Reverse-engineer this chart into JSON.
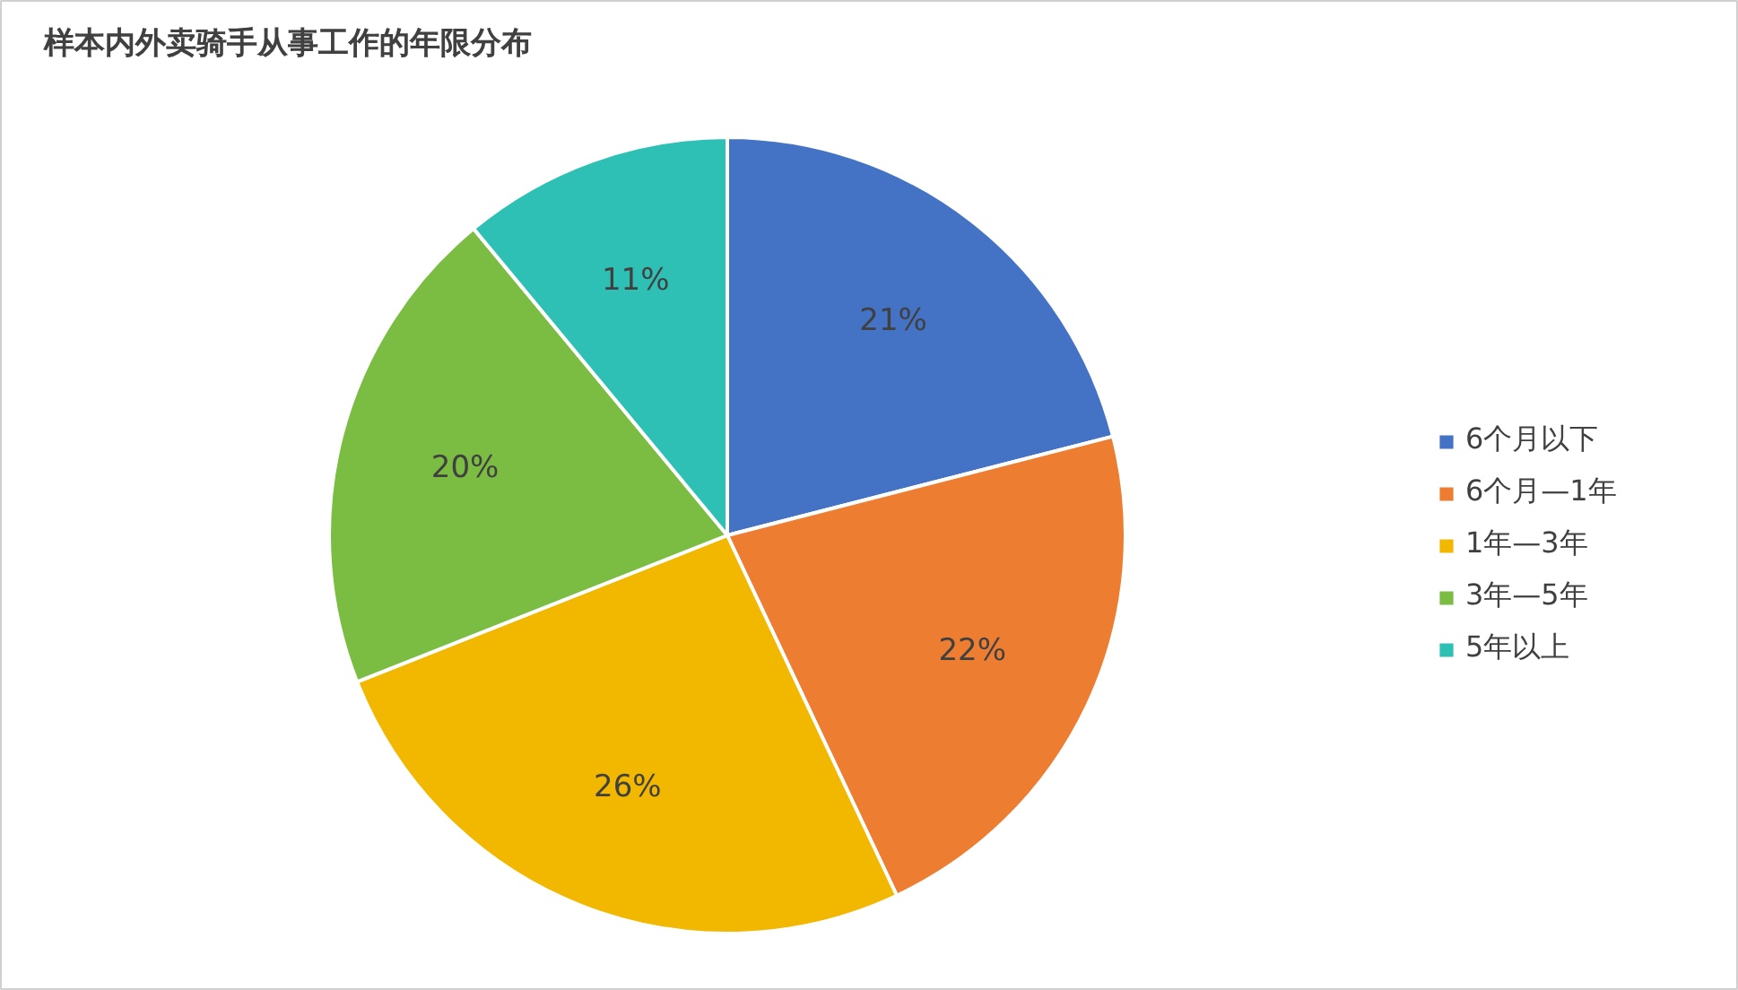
{
  "chart_data": {
    "type": "pie",
    "title": "样本内外卖骑手从事工作的年限分布",
    "categories": [
      "6个月以下",
      "6个月—1年",
      "1年—3年",
      "3年—5年",
      "5年以上"
    ],
    "values": [
      21,
      22,
      26,
      20,
      11
    ],
    "colors": [
      "#4472c4",
      "#ed7d31",
      "#f2b800",
      "#7bbd42",
      "#2fc0b5"
    ],
    "value_labels": [
      "21%",
      "22%",
      "26%",
      "20%",
      "11%"
    ],
    "legend": "right"
  }
}
